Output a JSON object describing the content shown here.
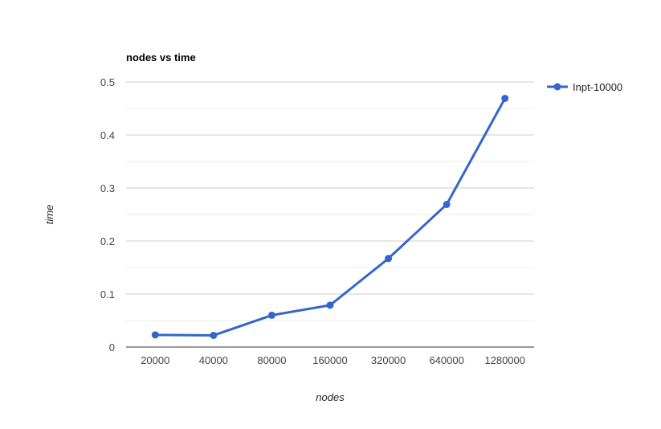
{
  "chart_data": {
    "type": "line",
    "title": "nodes vs time",
    "xlabel": "nodes",
    "ylabel": "time",
    "categories": [
      "20000",
      "40000",
      "80000",
      "160000",
      "320000",
      "640000",
      "1280000"
    ],
    "series": [
      {
        "name": "Inpt-10000",
        "values": [
          0.023,
          0.022,
          0.06,
          0.079,
          0.167,
          0.269,
          0.469
        ],
        "color": "#3366cc"
      }
    ],
    "ylim": [
      0,
      0.5
    ],
    "yticks": [
      "0",
      "0.1",
      "0.2",
      "0.3",
      "0.4",
      "0.5"
    ],
    "grid": true,
    "minor_grid": true,
    "legend_position": "right"
  }
}
